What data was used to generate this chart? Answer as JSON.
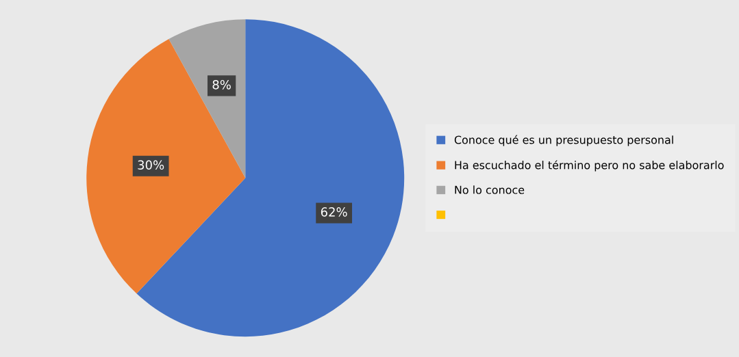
{
  "chart_data": {
    "type": "pie",
    "categories": [
      "Conoce qué es un presupuesto personal",
      "Ha escuchado el término pero no sabe elaborarlo",
      "No lo conoce",
      null
    ],
    "values": [
      62,
      30,
      8,
      0
    ],
    "colors": [
      "#4472c4",
      "#ed7d31",
      "#a5a5a5",
      "#ffc000"
    ],
    "value_labels": [
      "62%",
      "30%",
      "8%",
      null
    ],
    "legend": "right"
  }
}
